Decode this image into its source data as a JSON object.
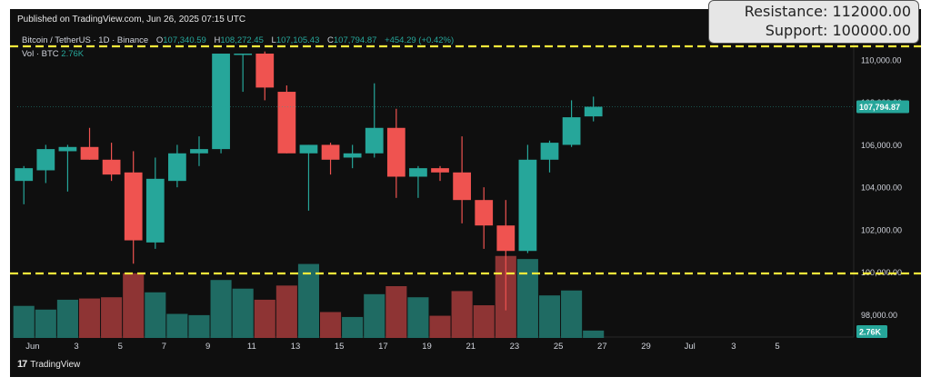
{
  "header": {
    "published": "Published on TradingView.com, Jun 26, 2025 07:15 UTC",
    "symbol": "Bitcoin / TetherUS · 1D · Binance",
    "open_label": "O",
    "open": "107,340.59",
    "high_label": "H",
    "high": "108,272.45",
    "low_label": "L",
    "low": "107,105.43",
    "close_label": "C",
    "close": "107,794.87",
    "change": "+454.29 (+0.42%)",
    "volume_label": "Vol · BTC",
    "volume": "2.76K"
  },
  "levels_box": {
    "resistance": "Resistance: 112000.00",
    "support": "Support: 100000.00"
  },
  "footer": {
    "brand": "TradingView"
  },
  "colors": {
    "up": "#26a69a",
    "down": "#ef5350",
    "up_volume": "#1f6b63",
    "down_volume": "#8e3434",
    "level_line": "#ffeb3b",
    "background": "#0f0f0f"
  },
  "chart_data": {
    "type": "candlestick",
    "price_axis": {
      "ticks": [
        98000,
        100000,
        102000,
        104000,
        106000,
        108000,
        110000
      ],
      "tick_labels": [
        "98,000.00",
        "100,000.00",
        "102,000.00",
        "104,000.00",
        "106,000.00",
        "108,000.00",
        "110,000.00"
      ],
      "range": [
        96900,
        110600
      ]
    },
    "date_axis": {
      "tick_labels": [
        "Jun",
        "3",
        "5",
        "7",
        "9",
        "11",
        "13",
        "15",
        "17",
        "19",
        "21",
        "23",
        "25",
        "27",
        "29",
        "Jul",
        "3",
        "5"
      ],
      "tick_days": [
        1,
        3,
        5,
        7,
        9,
        11,
        13,
        15,
        17,
        19,
        21,
        23,
        25,
        27,
        29,
        31,
        33,
        35
      ],
      "range_days": [
        0.3,
        38.4
      ]
    },
    "last_price_label": "107,794.87",
    "last_volume_label": "2.76K",
    "horizontal_levels": [
      112000,
      100000
    ],
    "candles": [
      {
        "day": 0.6,
        "o": 104300,
        "h": 105000,
        "l": 103200,
        "c": 104900,
        "v": 0.52
      },
      {
        "day": 1.6,
        "o": 104800,
        "h": 106000,
        "l": 104200,
        "c": 105800,
        "v": 0.46
      },
      {
        "day": 2.6,
        "o": 105700,
        "h": 106000,
        "l": 103800,
        "c": 105900,
        "v": 0.62
      },
      {
        "day": 3.6,
        "o": 105900,
        "h": 106800,
        "l": 105300,
        "c": 105300,
        "v": 0.64
      },
      {
        "day": 4.6,
        "o": 105300,
        "h": 106100,
        "l": 104300,
        "c": 104600,
        "v": 0.66
      },
      {
        "day": 5.6,
        "o": 104700,
        "h": 105700,
        "l": 100400,
        "c": 101500,
        "v": 1.05
      },
      {
        "day": 6.6,
        "o": 101400,
        "h": 105400,
        "l": 101100,
        "c": 104400,
        "v": 0.74
      },
      {
        "day": 7.6,
        "o": 104300,
        "h": 106000,
        "l": 104000,
        "c": 105600,
        "v": 0.39
      },
      {
        "day": 8.6,
        "o": 105600,
        "h": 106400,
        "l": 105000,
        "c": 105800,
        "v": 0.37
      },
      {
        "day": 9.6,
        "o": 105800,
        "h": 110300,
        "l": 105600,
        "c": 110300,
        "v": 0.94
      },
      {
        "day": 10.6,
        "o": 110300,
        "h": 110300,
        "l": 108500,
        "c": 110300,
        "v": 0.8
      },
      {
        "day": 11.6,
        "o": 110300,
        "h": 110400,
        "l": 108100,
        "c": 108700,
        "v": 0.62
      },
      {
        "day": 12.6,
        "o": 108500,
        "h": 108800,
        "l": 105600,
        "c": 105600,
        "v": 0.85
      },
      {
        "day": 13.6,
        "o": 105600,
        "h": 106000,
        "l": 102900,
        "c": 106000,
        "v": 1.2
      },
      {
        "day": 14.6,
        "o": 106000,
        "h": 106100,
        "l": 104600,
        "c": 105300,
        "v": 0.42
      },
      {
        "day": 15.6,
        "o": 105400,
        "h": 106000,
        "l": 104900,
        "c": 105600,
        "v": 0.34
      },
      {
        "day": 16.6,
        "o": 105600,
        "h": 108900,
        "l": 105400,
        "c": 106800,
        "v": 0.71
      },
      {
        "day": 17.6,
        "o": 106800,
        "h": 107700,
        "l": 103500,
        "c": 104500,
        "v": 0.84
      },
      {
        "day": 18.6,
        "o": 104500,
        "h": 105000,
        "l": 103500,
        "c": 104900,
        "v": 0.66
      },
      {
        "day": 19.6,
        "o": 104900,
        "h": 105000,
        "l": 104300,
        "c": 104700,
        "v": 0.36
      },
      {
        "day": 20.6,
        "o": 104700,
        "h": 106400,
        "l": 102300,
        "c": 103400,
        "v": 0.76
      },
      {
        "day": 21.6,
        "o": 103400,
        "h": 104000,
        "l": 101100,
        "c": 102200,
        "v": 0.53
      },
      {
        "day": 22.6,
        "o": 102200,
        "h": 103400,
        "l": 98200,
        "c": 101000,
        "v": 1.33
      },
      {
        "day": 23.6,
        "o": 101000,
        "h": 106000,
        "l": 100900,
        "c": 105300,
        "v": 1.28
      },
      {
        "day": 24.6,
        "o": 105300,
        "h": 106200,
        "l": 104700,
        "c": 106100,
        "v": 0.69
      },
      {
        "day": 25.6,
        "o": 106000,
        "h": 108100,
        "l": 105900,
        "c": 107300,
        "v": 0.77
      },
      {
        "day": 26.6,
        "o": 107340.59,
        "h": 108272.45,
        "l": 107105.43,
        "c": 107794.87,
        "v": 0.12
      }
    ]
  }
}
